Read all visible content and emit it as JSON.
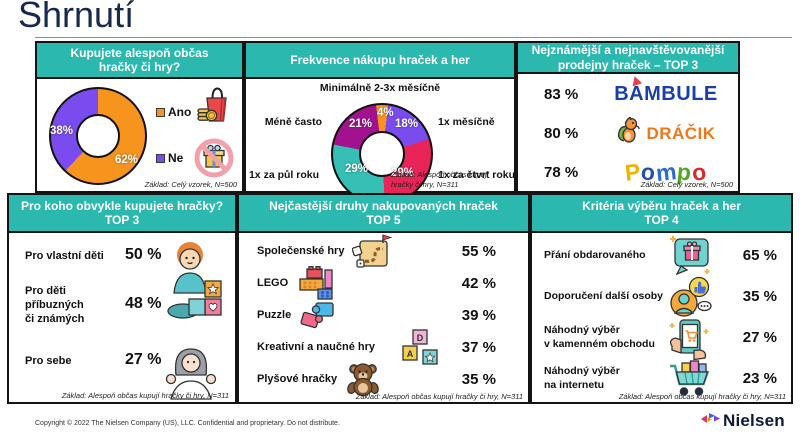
{
  "page": {
    "title": "Shrnutí",
    "copyright": "Copyright © 2022 The Nielsen Company (US), LLC. Confidential and proprietary. Do not distribute.",
    "brand": "Nielsen"
  },
  "panels": {
    "buy": {
      "title": "Kupujete alespoň občas\nhračky či hry?",
      "legend": {
        "yes": "Ano",
        "no": "Ne"
      },
      "labels": {
        "yes_pct": "62%",
        "no_pct": "38%"
      },
      "base": "Základ: Celý vzorek, N=500"
    },
    "frequency": {
      "title": "Frekvence nákupu hraček a her",
      "top_label": "Minimálně 2-3x měsíčně",
      "slices": {
        "monthly23": {
          "label": "Minimálně 2-3x měsíčně",
          "pct": "4%"
        },
        "monthly1": {
          "label": "1x měsíčně",
          "pct": "18%"
        },
        "quarter": {
          "label": "1x za čtvrt roku",
          "pct": "29%"
        },
        "halfyear": {
          "label": "1x za půl roku",
          "pct": "29%"
        },
        "less": {
          "label": "Méně často",
          "pct": "21%"
        }
      },
      "base": "Základ: Alespoň občas kupují hračky či hry, N=311"
    },
    "shops": {
      "title": "Nejznámější a nejnavštěvovanější\nprodejny hraček – TOP 3",
      "items": [
        {
          "value": "83 %",
          "brand": "BAMBULE"
        },
        {
          "value": "80 %",
          "brand": "DRÁČIK"
        },
        {
          "value": "78 %",
          "brand": "Pompo"
        }
      ],
      "pompo_colors": [
        "#f0b400",
        "#2453a8",
        "#2b6bd9",
        "#53a829",
        "#d92b2b"
      ],
      "bambule_color": "#1b3faa",
      "dracik_color": "#f07818",
      "base": "Základ: Celý vzorek, N=500"
    },
    "who": {
      "title": "Pro koho obvykle kupujete hračky?\nTOP 3",
      "items": [
        {
          "label": "Pro vlastní děti",
          "value": "50 %"
        },
        {
          "label": "Pro děti\npříbuzných\nči známých",
          "value": "48 %"
        },
        {
          "label": "Pro sebe",
          "value": "27 %"
        }
      ],
      "base": "Základ: Alespoň občas kupují hračky či hry, N=311"
    },
    "toys": {
      "title": "Nejčastější druhy nakupovaných hraček\nTOP 5",
      "items": [
        {
          "label": "Společenské hry",
          "value": "55 %"
        },
        {
          "label": "LEGO",
          "value": "42 %"
        },
        {
          "label": "Puzzle",
          "value": "39 %"
        },
        {
          "label": "Kreativní a naučné hry",
          "value": "37 %"
        },
        {
          "label": "Plyšové hračky",
          "value": "35 %"
        }
      ],
      "base": "Základ: Alespoň občas kupují hračky či hry, N=311"
    },
    "criteria": {
      "title": "Kritéria výběru hraček a her\nTOP 4",
      "items": [
        {
          "label": "Přání obdarovaného",
          "value": "65 %"
        },
        {
          "label": "Doporučení další osoby",
          "value": "35 %"
        },
        {
          "label": "Náhodný výběr\nv kamenném obchodu",
          "value": "27 %"
        },
        {
          "label": "Náhodný výběr\nna internetu",
          "value": "23 %"
        }
      ],
      "base": "Základ: Alespoň občas kupují hračky či hry, N=311"
    }
  },
  "colors": {
    "header_teal": "#2bb9af",
    "orange": "#F7941D",
    "purple": "#7a4bee",
    "pink": "#e82458",
    "teal_slice": "#35bfb5",
    "magenta": "#a3118f",
    "title_navy": "#17294d"
  },
  "chart_data": [
    {
      "type": "pie",
      "title": "Kupujete alespoň občas hračky či hry?",
      "labels": [
        "Ano",
        "Ne"
      ],
      "values": [
        62,
        38
      ],
      "unit": "%",
      "colors": [
        "#F7941D",
        "#7a4bee"
      ],
      "legend_position": "right",
      "base": "Základ: Celý vzorek, N=500"
    },
    {
      "type": "pie",
      "title": "Frekvence nákupu hraček a her",
      "labels": [
        "Minimálně 2-3x měsíčně",
        "1x měsíčně",
        "1x za čtvrt roku",
        "1x za půl roku",
        "Méně často"
      ],
      "values": [
        4,
        18,
        29,
        29,
        21
      ],
      "unit": "%",
      "colors": [
        "#F7941D",
        "#7a4bee",
        "#e82458",
        "#35bfb5",
        "#a3118f"
      ],
      "base": "Základ: Alespoň občas kupují hračky či hry, N=311"
    },
    {
      "type": "bar",
      "title": "Nejznámější a nejnavštěvovanější prodejny hraček – TOP 3",
      "categories": [
        "Bambule",
        "Dráčik",
        "Pompo"
      ],
      "values": [
        83,
        80,
        78
      ],
      "unit": "%",
      "base": "Základ: Celý vzorek, N=500"
    },
    {
      "type": "bar",
      "title": "Pro koho obvykle kupujete hračky? TOP 3",
      "categories": [
        "Pro vlastní děti",
        "Pro děti příbuzných či známých",
        "Pro sebe"
      ],
      "values": [
        50,
        48,
        27
      ],
      "unit": "%",
      "base": "Základ: Alespoň občas kupují hračky či hry, N=311"
    },
    {
      "type": "bar",
      "title": "Nejčastější druhy nakupovaných hraček TOP 5",
      "categories": [
        "Společenské hry",
        "LEGO",
        "Puzzle",
        "Kreativní a naučné hry",
        "Plyšové hračky"
      ],
      "values": [
        55,
        42,
        39,
        37,
        35
      ],
      "unit": "%",
      "base": "Základ: Alespoň občas kupují hračky či hry, N=311"
    },
    {
      "type": "bar",
      "title": "Kritéria výběru hraček a her TOP 4",
      "categories": [
        "Přání obdarovaného",
        "Doporučení další osoby",
        "Náhodný výběr v kamenném obchodu",
        "Náhodný výběr na internetu"
      ],
      "values": [
        65,
        35,
        27,
        23
      ],
      "unit": "%",
      "base": "Základ: Alespoň občas kupují hračky či hry, N=311"
    }
  ]
}
